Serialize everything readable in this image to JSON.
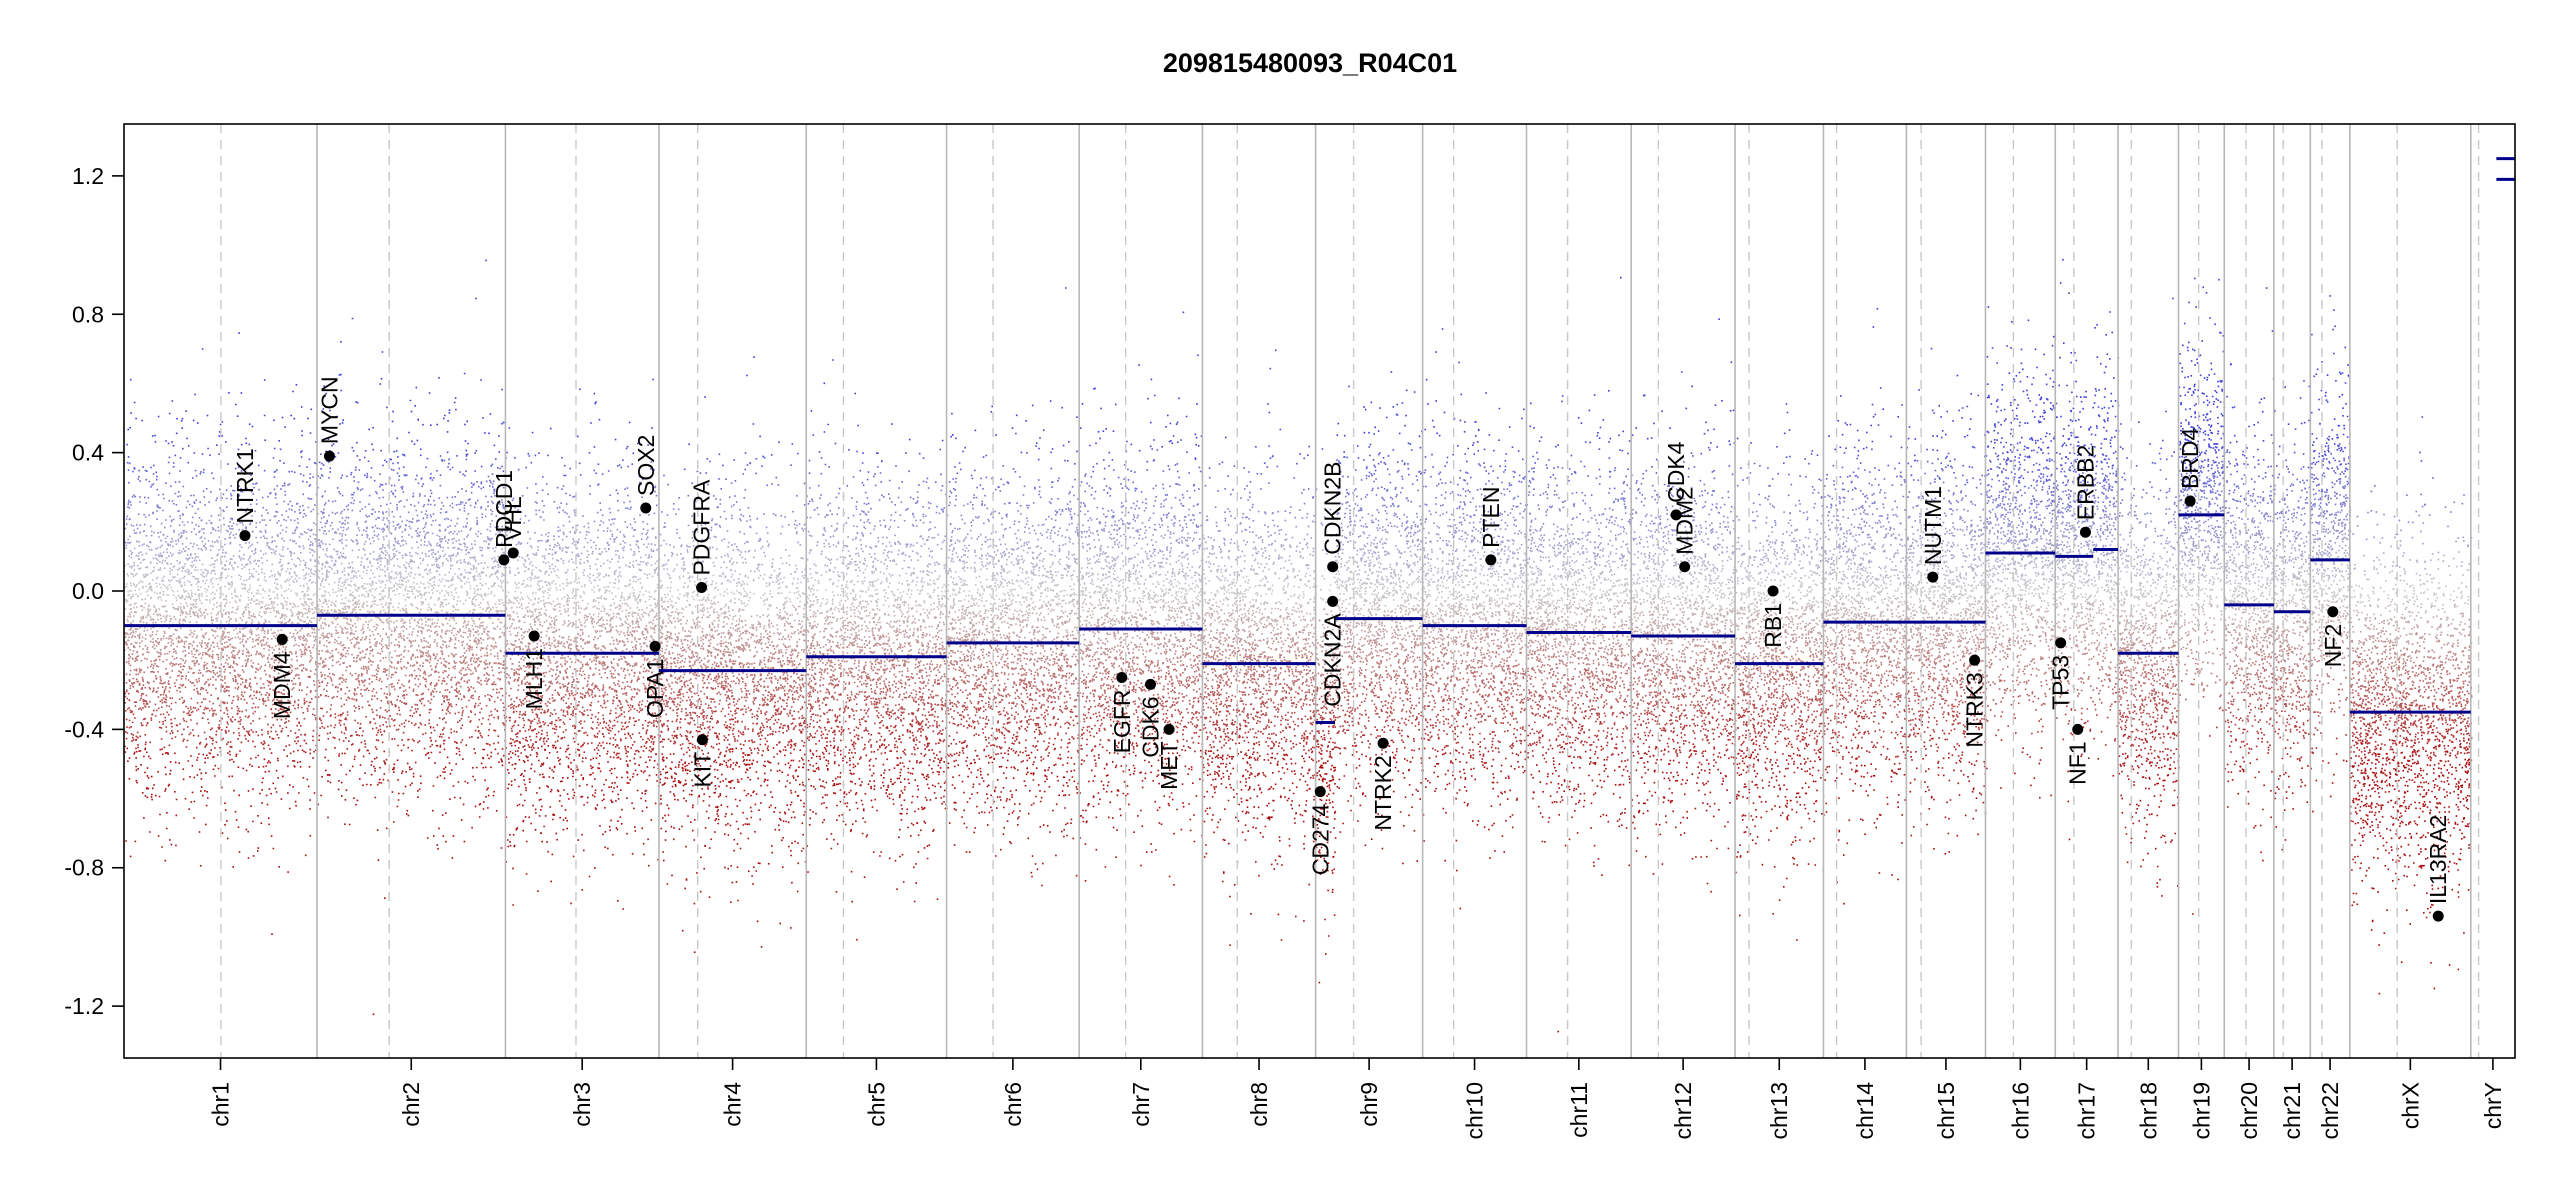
{
  "chart_data": {
    "type": "scatter",
    "title": "209815480093_R04C01",
    "xlabel": "",
    "ylabel": "",
    "ylim": [
      -1.35,
      1.35
    ],
    "yticks": [
      -1.2,
      -0.8,
      -0.4,
      0.0,
      0.4,
      0.8,
      1.2
    ],
    "ytick_labels": [
      "-1.2",
      "-0.8",
      "-0.4",
      "0.0",
      "0.4",
      "0.8",
      "1.2"
    ],
    "chromosomes": [
      {
        "name": "chr1",
        "start": 0,
        "end": 249,
        "centromere": 125
      },
      {
        "name": "chr2",
        "start": 249,
        "end": 492,
        "centromere": 93
      },
      {
        "name": "chr3",
        "start": 492,
        "end": 690,
        "centromere": 91
      },
      {
        "name": "chr4",
        "start": 690,
        "end": 880,
        "centromere": 50
      },
      {
        "name": "chr5",
        "start": 880,
        "end": 1061,
        "centromere": 48
      },
      {
        "name": "chr6",
        "start": 1061,
        "end": 1232,
        "centromere": 60
      },
      {
        "name": "chr7",
        "start": 1232,
        "end": 1391,
        "centromere": 60
      },
      {
        "name": "chr8",
        "start": 1391,
        "end": 1537,
        "centromere": 45
      },
      {
        "name": "chr9",
        "start": 1537,
        "end": 1675,
        "centromere": 49
      },
      {
        "name": "chr10",
        "start": 1675,
        "end": 1809,
        "centromere": 40
      },
      {
        "name": "chr11",
        "start": 1809,
        "end": 1944,
        "centromere": 53
      },
      {
        "name": "chr12",
        "start": 1944,
        "end": 2078,
        "centromere": 35
      },
      {
        "name": "chr13",
        "start": 2078,
        "end": 2192,
        "centromere": 18
      },
      {
        "name": "chr14",
        "start": 2192,
        "end": 2299,
        "centromere": 17
      },
      {
        "name": "chr15",
        "start": 2299,
        "end": 2401,
        "centromere": 19
      },
      {
        "name": "chr16",
        "start": 2401,
        "end": 2491,
        "centromere": 36
      },
      {
        "name": "chr17",
        "start": 2491,
        "end": 2572,
        "centromere": 24
      },
      {
        "name": "chr18",
        "start": 2572,
        "end": 2650,
        "centromere": 17
      },
      {
        "name": "chr19",
        "start": 2650,
        "end": 2709,
        "centromere": 26
      },
      {
        "name": "chr20",
        "start": 2709,
        "end": 2773,
        "centromere": 28
      },
      {
        "name": "chr21",
        "start": 2773,
        "end": 2820,
        "centromere": 12
      },
      {
        "name": "chr22",
        "start": 2820,
        "end": 2871,
        "centromere": 15
      },
      {
        "name": "chrX",
        "start": 2871,
        "end": 3027,
        "centromere": 61
      },
      {
        "name": "chrY",
        "start": 3027,
        "end": 3084,
        "centromere": 10
      }
    ],
    "segments": [
      {
        "start": 0,
        "end": 249,
        "value": -0.1
      },
      {
        "start": 249,
        "end": 492,
        "value": -0.07
      },
      {
        "start": 492,
        "end": 690,
        "value": -0.18
      },
      {
        "start": 690,
        "end": 880,
        "value": -0.23
      },
      {
        "start": 880,
        "end": 1061,
        "value": -0.19
      },
      {
        "start": 1061,
        "end": 1232,
        "value": -0.15
      },
      {
        "start": 1232,
        "end": 1391,
        "value": -0.11
      },
      {
        "start": 1391,
        "end": 1537,
        "value": -0.21
      },
      {
        "start": 1537,
        "end": 1562,
        "value": -0.38
      },
      {
        "start": 1562,
        "end": 1675,
        "value": -0.08
      },
      {
        "start": 1675,
        "end": 1809,
        "value": -0.1
      },
      {
        "start": 1809,
        "end": 1944,
        "value": -0.12
      },
      {
        "start": 1944,
        "end": 2078,
        "value": -0.13
      },
      {
        "start": 2078,
        "end": 2192,
        "value": -0.21
      },
      {
        "start": 2192,
        "end": 2299,
        "value": -0.09
      },
      {
        "start": 2299,
        "end": 2401,
        "value": -0.09
      },
      {
        "start": 2401,
        "end": 2491,
        "value": 0.11
      },
      {
        "start": 2491,
        "end": 2540,
        "value": 0.1
      },
      {
        "start": 2540,
        "end": 2572,
        "value": 0.12
      },
      {
        "start": 2572,
        "end": 2650,
        "value": -0.18
      },
      {
        "start": 2650,
        "end": 2709,
        "value": 0.22
      },
      {
        "start": 2709,
        "end": 2773,
        "value": -0.04
      },
      {
        "start": 2773,
        "end": 2820,
        "value": -0.06
      },
      {
        "start": 2820,
        "end": 2871,
        "value": 0.09
      },
      {
        "start": 2871,
        "end": 3027,
        "value": -0.35
      },
      {
        "start": 3060,
        "end": 3084,
        "value": 1.19
      },
      {
        "start": 3060,
        "end": 3084,
        "value": 1.25
      }
    ],
    "genes": [
      {
        "name": "NTRK1",
        "pos": 156,
        "value": 0.16,
        "label_side": "above"
      },
      {
        "name": "MDM4",
        "pos": 204,
        "value": -0.14,
        "label_side": "below"
      },
      {
        "name": "MYCN",
        "pos": 265,
        "value": 0.39,
        "label_side": "above"
      },
      {
        "name": "PDCD1",
        "pos": 490,
        "value": 0.09,
        "label_side": "above"
      },
      {
        "name": "VHL",
        "pos": 502,
        "value": 0.11,
        "label_side": "above"
      },
      {
        "name": "MLH1",
        "pos": 529,
        "value": -0.13,
        "label_side": "below"
      },
      {
        "name": "SOX2",
        "pos": 673,
        "value": 0.24,
        "label_side": "above"
      },
      {
        "name": "OPA1",
        "pos": 685,
        "value": -0.16,
        "label_side": "below"
      },
      {
        "name": "PDGFRA",
        "pos": 745,
        "value": 0.01,
        "label_side": "above"
      },
      {
        "name": "KIT",
        "pos": 746,
        "value": -0.43,
        "label_side": "below"
      },
      {
        "name": "EGFR",
        "pos": 1287,
        "value": -0.25,
        "label_side": "below"
      },
      {
        "name": "CDK6",
        "pos": 1324,
        "value": -0.27,
        "label_side": "below"
      },
      {
        "name": "MET",
        "pos": 1348,
        "value": -0.4,
        "label_side": "below"
      },
      {
        "name": "CD274",
        "pos": 1543,
        "value": -0.58,
        "label_side": "below"
      },
      {
        "name": "CDKN2A",
        "pos": 1559,
        "value": -0.03,
        "label_side": "below"
      },
      {
        "name": "CDKN2B",
        "pos": 1559,
        "value": 0.07,
        "label_side": "above"
      },
      {
        "name": "NTRK2",
        "pos": 1624,
        "value": -0.44,
        "label_side": "below"
      },
      {
        "name": "PTEN",
        "pos": 1763,
        "value": 0.09,
        "label_side": "above"
      },
      {
        "name": "CDK4",
        "pos": 2002,
        "value": 0.22,
        "label_side": "above"
      },
      {
        "name": "MDM2",
        "pos": 2013,
        "value": 0.07,
        "label_side": "above"
      },
      {
        "name": "RB1",
        "pos": 2127,
        "value": 0.0,
        "label_side": "below"
      },
      {
        "name": "NUTM1",
        "pos": 2333,
        "value": 0.04,
        "label_side": "above"
      },
      {
        "name": "NTRK3",
        "pos": 2387,
        "value": -0.2,
        "label_side": "below"
      },
      {
        "name": "TP53",
        "pos": 2498,
        "value": -0.15,
        "label_side": "below"
      },
      {
        "name": "NF1",
        "pos": 2520,
        "value": -0.4,
        "label_side": "below"
      },
      {
        "name": "ERBB2",
        "pos": 2530,
        "value": 0.17,
        "label_side": "above"
      },
      {
        "name": "BRD4",
        "pos": 2665,
        "value": 0.26,
        "label_side": "above"
      },
      {
        "name": "NF2",
        "pos": 2849,
        "value": -0.06,
        "label_side": "below"
      },
      {
        "name": "IL13RA2",
        "pos": 2985,
        "value": -0.94,
        "label_side": "above"
      }
    ]
  }
}
